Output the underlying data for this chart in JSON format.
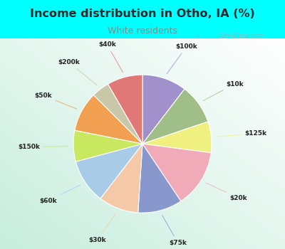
{
  "title": "Income distribution in Otho, IA (%)",
  "subtitle": "White residents",
  "title_color": "#2a2a2a",
  "subtitle_color": "#888888",
  "background_outer": "#00ffff",
  "segments": [
    {
      "label": "$100k",
      "value": 10,
      "color": "#a090cc"
    },
    {
      "label": "$10k",
      "value": 9,
      "color": "#a0be88"
    },
    {
      "label": "$125k",
      "value": 7,
      "color": "#f0f080"
    },
    {
      "label": "$20k",
      "value": 13,
      "color": "#f0aab8"
    },
    {
      "label": "$75k",
      "value": 10,
      "color": "#8898cc"
    },
    {
      "label": "$30k",
      "value": 9,
      "color": "#f5c8a8"
    },
    {
      "label": "$60k",
      "value": 10,
      "color": "#a8cce8"
    },
    {
      "label": "$150k",
      "value": 7,
      "color": "#c8e860"
    },
    {
      "label": "$50k",
      "value": 9,
      "color": "#f0a050"
    },
    {
      "label": "$200k",
      "value": 4,
      "color": "#c8c8a8"
    },
    {
      "label": "$40k",
      "value": 8,
      "color": "#e07878"
    }
  ]
}
